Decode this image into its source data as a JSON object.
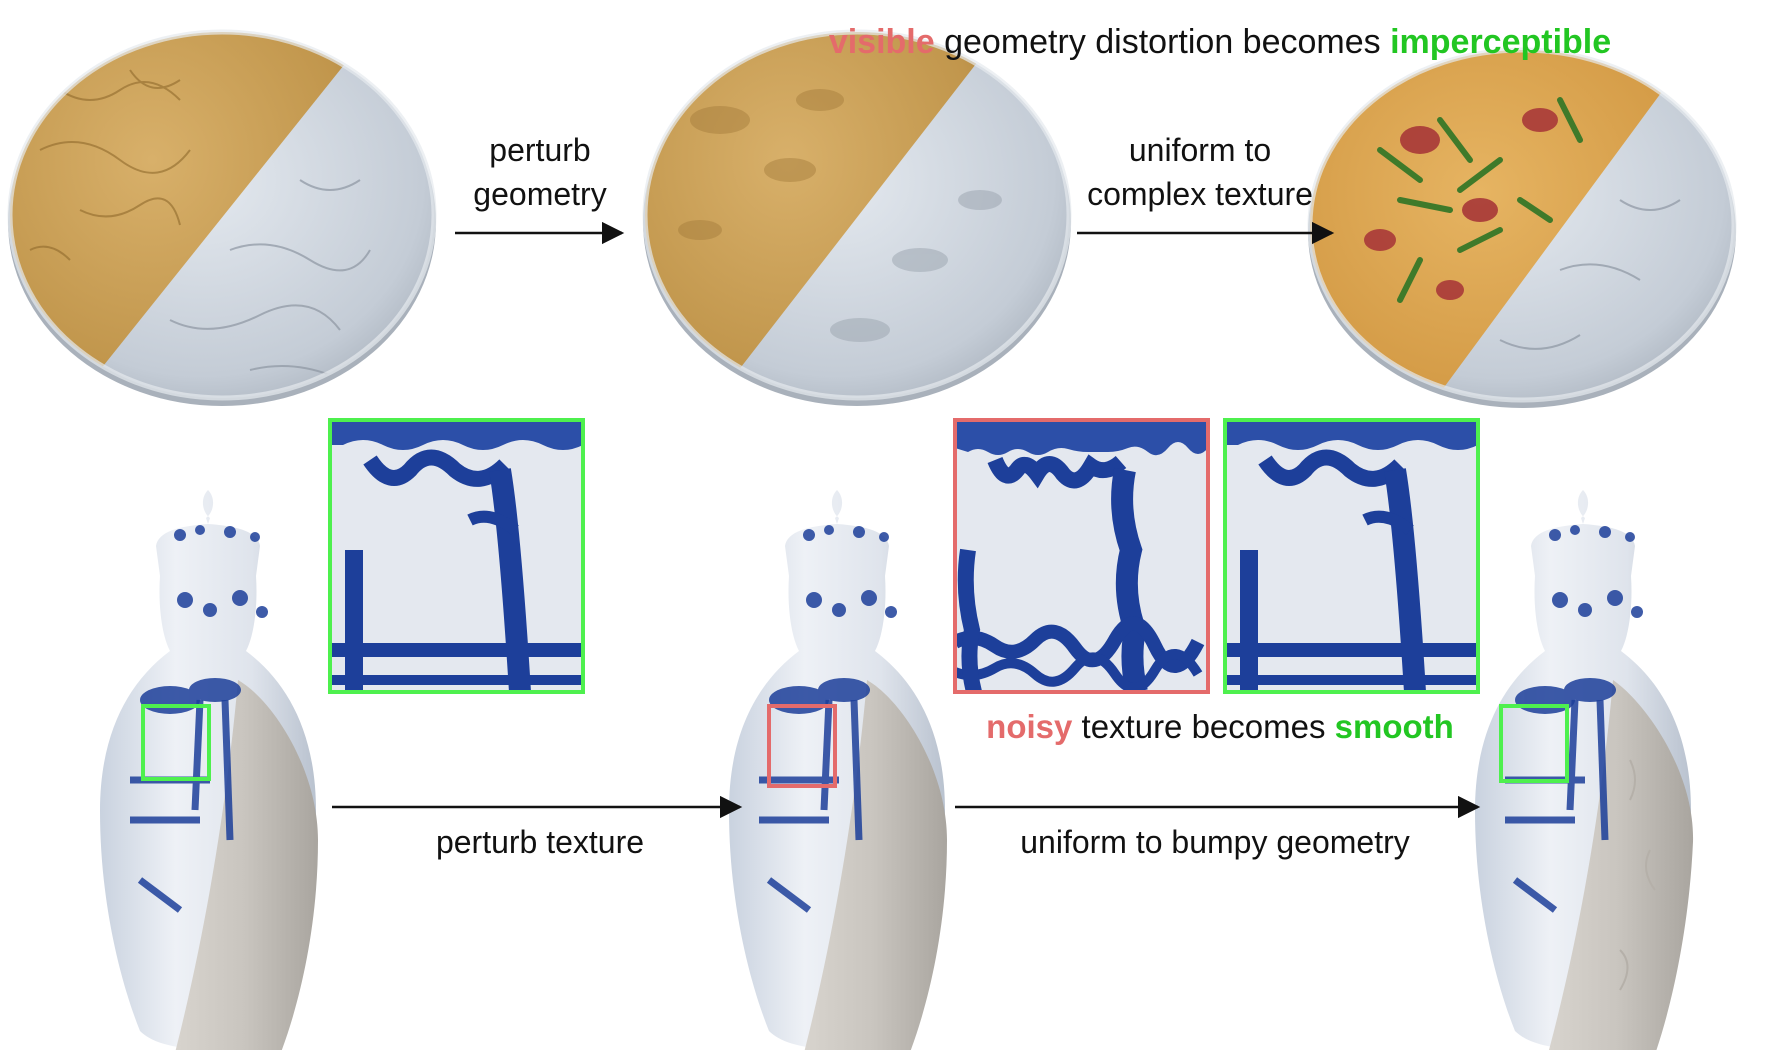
{
  "top_caption": {
    "highlight_a": "visible",
    "middle": " geometry distortion becomes ",
    "highlight_b": "imperceptible"
  },
  "bottom_caption": {
    "highlight_a": "noisy",
    "middle": " texture becomes ",
    "highlight_b": "smooth"
  },
  "arrows": {
    "perturb_geometry": {
      "line1": "perturb",
      "line2": "geometry"
    },
    "uniform_to_complex": {
      "line1": "uniform to",
      "line2": "complex texture"
    },
    "perturb_texture": "perturb texture",
    "uniform_to_bumpy": "uniform to bumpy geometry"
  },
  "colors": {
    "highlight_red": "#e46b6b",
    "highlight_green": "#22c622",
    "geometry_gold": "#c79a4c",
    "shaded_gray": "#c9d0d8",
    "porcelain_blue": "#1d3f9a",
    "porcelain_white": "#e8ecf2",
    "pizza_crust": "#d9a24f",
    "arugula_green": "#3f7a2a",
    "salami_red": "#a83838"
  },
  "panels": {
    "pizza_uniform_geometry": "pizza-render-gold-and-gray",
    "pizza_perturbed_geometry": "pizza-render-smoothed",
    "pizza_textured": "pizza-render-full-texture",
    "vase_textured": "vase-render",
    "vase_perturbed_texture": "vase-render-noisy",
    "vase_bumpy_geometry": "vase-render-bumpy",
    "zoom_clean": "zoom-crop-green",
    "zoom_noisy": "zoom-crop-red",
    "zoom_smooth": "zoom-crop-green"
  }
}
